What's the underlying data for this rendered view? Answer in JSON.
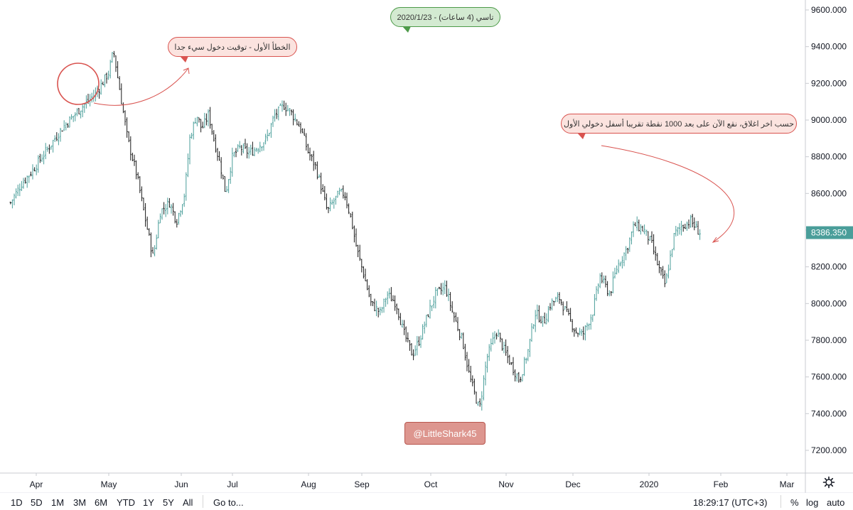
{
  "chart_data": {
    "type": "ohlc",
    "title": "",
    "xlabel": "",
    "ylabel": "",
    "ylim": [
      7050,
      9700
    ],
    "price_axis_ticks": [
      "9600.000",
      "9400.000",
      "9200.000",
      "9000.000",
      "8800.000",
      "8600.000",
      "8400.000",
      "8200.000",
      "8000.000",
      "7800.000",
      "7600.000",
      "7400.000",
      "7200.000"
    ],
    "time_axis_ticks": [
      "Apr",
      "May",
      "Jun",
      "Jul",
      "Aug",
      "Sep",
      "Oct",
      "Nov",
      "Dec",
      "2020",
      "Feb",
      "Mar"
    ],
    "last_price": "8386.350",
    "grid": false,
    "series": [
      {
        "values": [
          [
            "2019-03-15",
            8550
          ],
          [
            "2019-03-22",
            8650
          ],
          [
            "2019-03-29",
            8720
          ],
          [
            "2019-04-05",
            8830
          ],
          [
            "2019-04-12",
            8960
          ],
          [
            "2019-04-19",
            9060
          ],
          [
            "2019-04-26",
            9150
          ],
          [
            "2019-05-01",
            9260
          ],
          [
            "2019-05-03",
            9380
          ],
          [
            "2019-05-07",
            9060
          ],
          [
            "2019-05-09",
            8900
          ],
          [
            "2019-05-13",
            8700
          ],
          [
            "2019-05-16",
            8500
          ],
          [
            "2019-05-20",
            8250
          ],
          [
            "2019-05-23",
            8500
          ],
          [
            "2019-05-27",
            8550
          ],
          [
            "2019-05-30",
            8450
          ],
          [
            "2019-06-03",
            8600
          ],
          [
            "2019-06-06",
            8900
          ],
          [
            "2019-06-10",
            9030
          ],
          [
            "2019-06-13",
            8950
          ],
          [
            "2019-06-17",
            9030
          ],
          [
            "2019-06-20",
            8900
          ],
          [
            "2019-06-24",
            8750
          ],
          [
            "2019-06-27",
            8600
          ],
          [
            "2019-07-01",
            8800
          ],
          [
            "2019-07-04",
            8850
          ],
          [
            "2019-07-08",
            8820
          ],
          [
            "2019-07-11",
            8850
          ],
          [
            "2019-07-15",
            8900
          ],
          [
            "2019-07-18",
            9020
          ],
          [
            "2019-07-22",
            9080
          ],
          [
            "2019-07-25",
            9040
          ],
          [
            "2019-07-29",
            8950
          ],
          [
            "2019-08-01",
            8820
          ],
          [
            "2019-08-05",
            8750
          ],
          [
            "2019-08-08",
            8650
          ],
          [
            "2019-08-12",
            8500
          ],
          [
            "2019-08-15",
            8550
          ],
          [
            "2019-08-19",
            8600
          ],
          [
            "2019-08-22",
            8600
          ],
          [
            "2019-08-26",
            8450
          ],
          [
            "2019-08-29",
            8300
          ],
          [
            "2019-09-02",
            8150
          ],
          [
            "2019-09-05",
            8000
          ],
          [
            "2019-09-09",
            7950
          ],
          [
            "2019-09-12",
            8050
          ],
          [
            "2019-09-16",
            8000
          ],
          [
            "2019-09-19",
            7850
          ],
          [
            "2019-09-23",
            7720
          ],
          [
            "2019-09-26",
            7800
          ],
          [
            "2019-09-30",
            7950
          ],
          [
            "2019-10-03",
            8050
          ],
          [
            "2019-10-07",
            8090
          ],
          [
            "2019-10-10",
            7950
          ],
          [
            "2019-10-14",
            7800
          ],
          [
            "2019-10-17",
            7600
          ],
          [
            "2019-10-21",
            7420
          ],
          [
            "2019-10-24",
            7700
          ],
          [
            "2019-10-28",
            7850
          ],
          [
            "2019-10-31",
            7750
          ],
          [
            "2019-11-04",
            7650
          ],
          [
            "2019-11-07",
            7580
          ],
          [
            "2019-11-11",
            7750
          ],
          [
            "2019-11-14",
            7950
          ],
          [
            "2019-11-18",
            7900
          ],
          [
            "2019-11-21",
            8000
          ],
          [
            "2019-11-25",
            8030
          ],
          [
            "2019-11-28",
            7950
          ],
          [
            "2019-12-02",
            7850
          ],
          [
            "2019-12-05",
            7830
          ],
          [
            "2019-12-09",
            7950
          ],
          [
            "2019-12-12",
            8150
          ],
          [
            "2019-12-16",
            8050
          ],
          [
            "2019-12-19",
            8200
          ],
          [
            "2019-12-23",
            8300
          ],
          [
            "2019-12-26",
            8430
          ],
          [
            "2019-12-30",
            8400
          ],
          [
            "2020-01-02",
            8330
          ],
          [
            "2020-01-05",
            8200
          ],
          [
            "2020-01-08",
            8100
          ],
          [
            "2020-01-12",
            8380
          ],
          [
            "2020-01-15",
            8420
          ],
          [
            "2020-01-19",
            8450
          ],
          [
            "2020-01-22",
            8400
          ],
          [
            "2020-01-23",
            8386.35
          ]
        ]
      }
    ]
  },
  "callouts": {
    "title": "تاسي (4 ساعات) - 2020/1/23",
    "first_mistake": "الخطأ الأول - توقيت دخول سيء جدا",
    "last_close": "حسب اخر اغلاق، نقع الآن على بعد 1000 نقطة تقريبا أسفل دخولي الأول"
  },
  "watermark": "@LittleShark45",
  "colors": {
    "up_bar": "#4a9e9a",
    "down_bar": "#1a1a1a",
    "price_label_bg": "#4a9e9a",
    "annotation_red": "#d9534f",
    "annotation_green": "#4d9a49",
    "watermark_bg": "#dd968f"
  },
  "toolbar": {
    "ranges": [
      "1D",
      "5D",
      "1M",
      "3M",
      "6M",
      "YTD",
      "1Y",
      "5Y",
      "All"
    ],
    "goto": "Go to...",
    "clock": "18:29:17 (UTC+3)",
    "percent": "%",
    "log": "log",
    "auto": "auto",
    "settings_icon": "gear-icon"
  }
}
